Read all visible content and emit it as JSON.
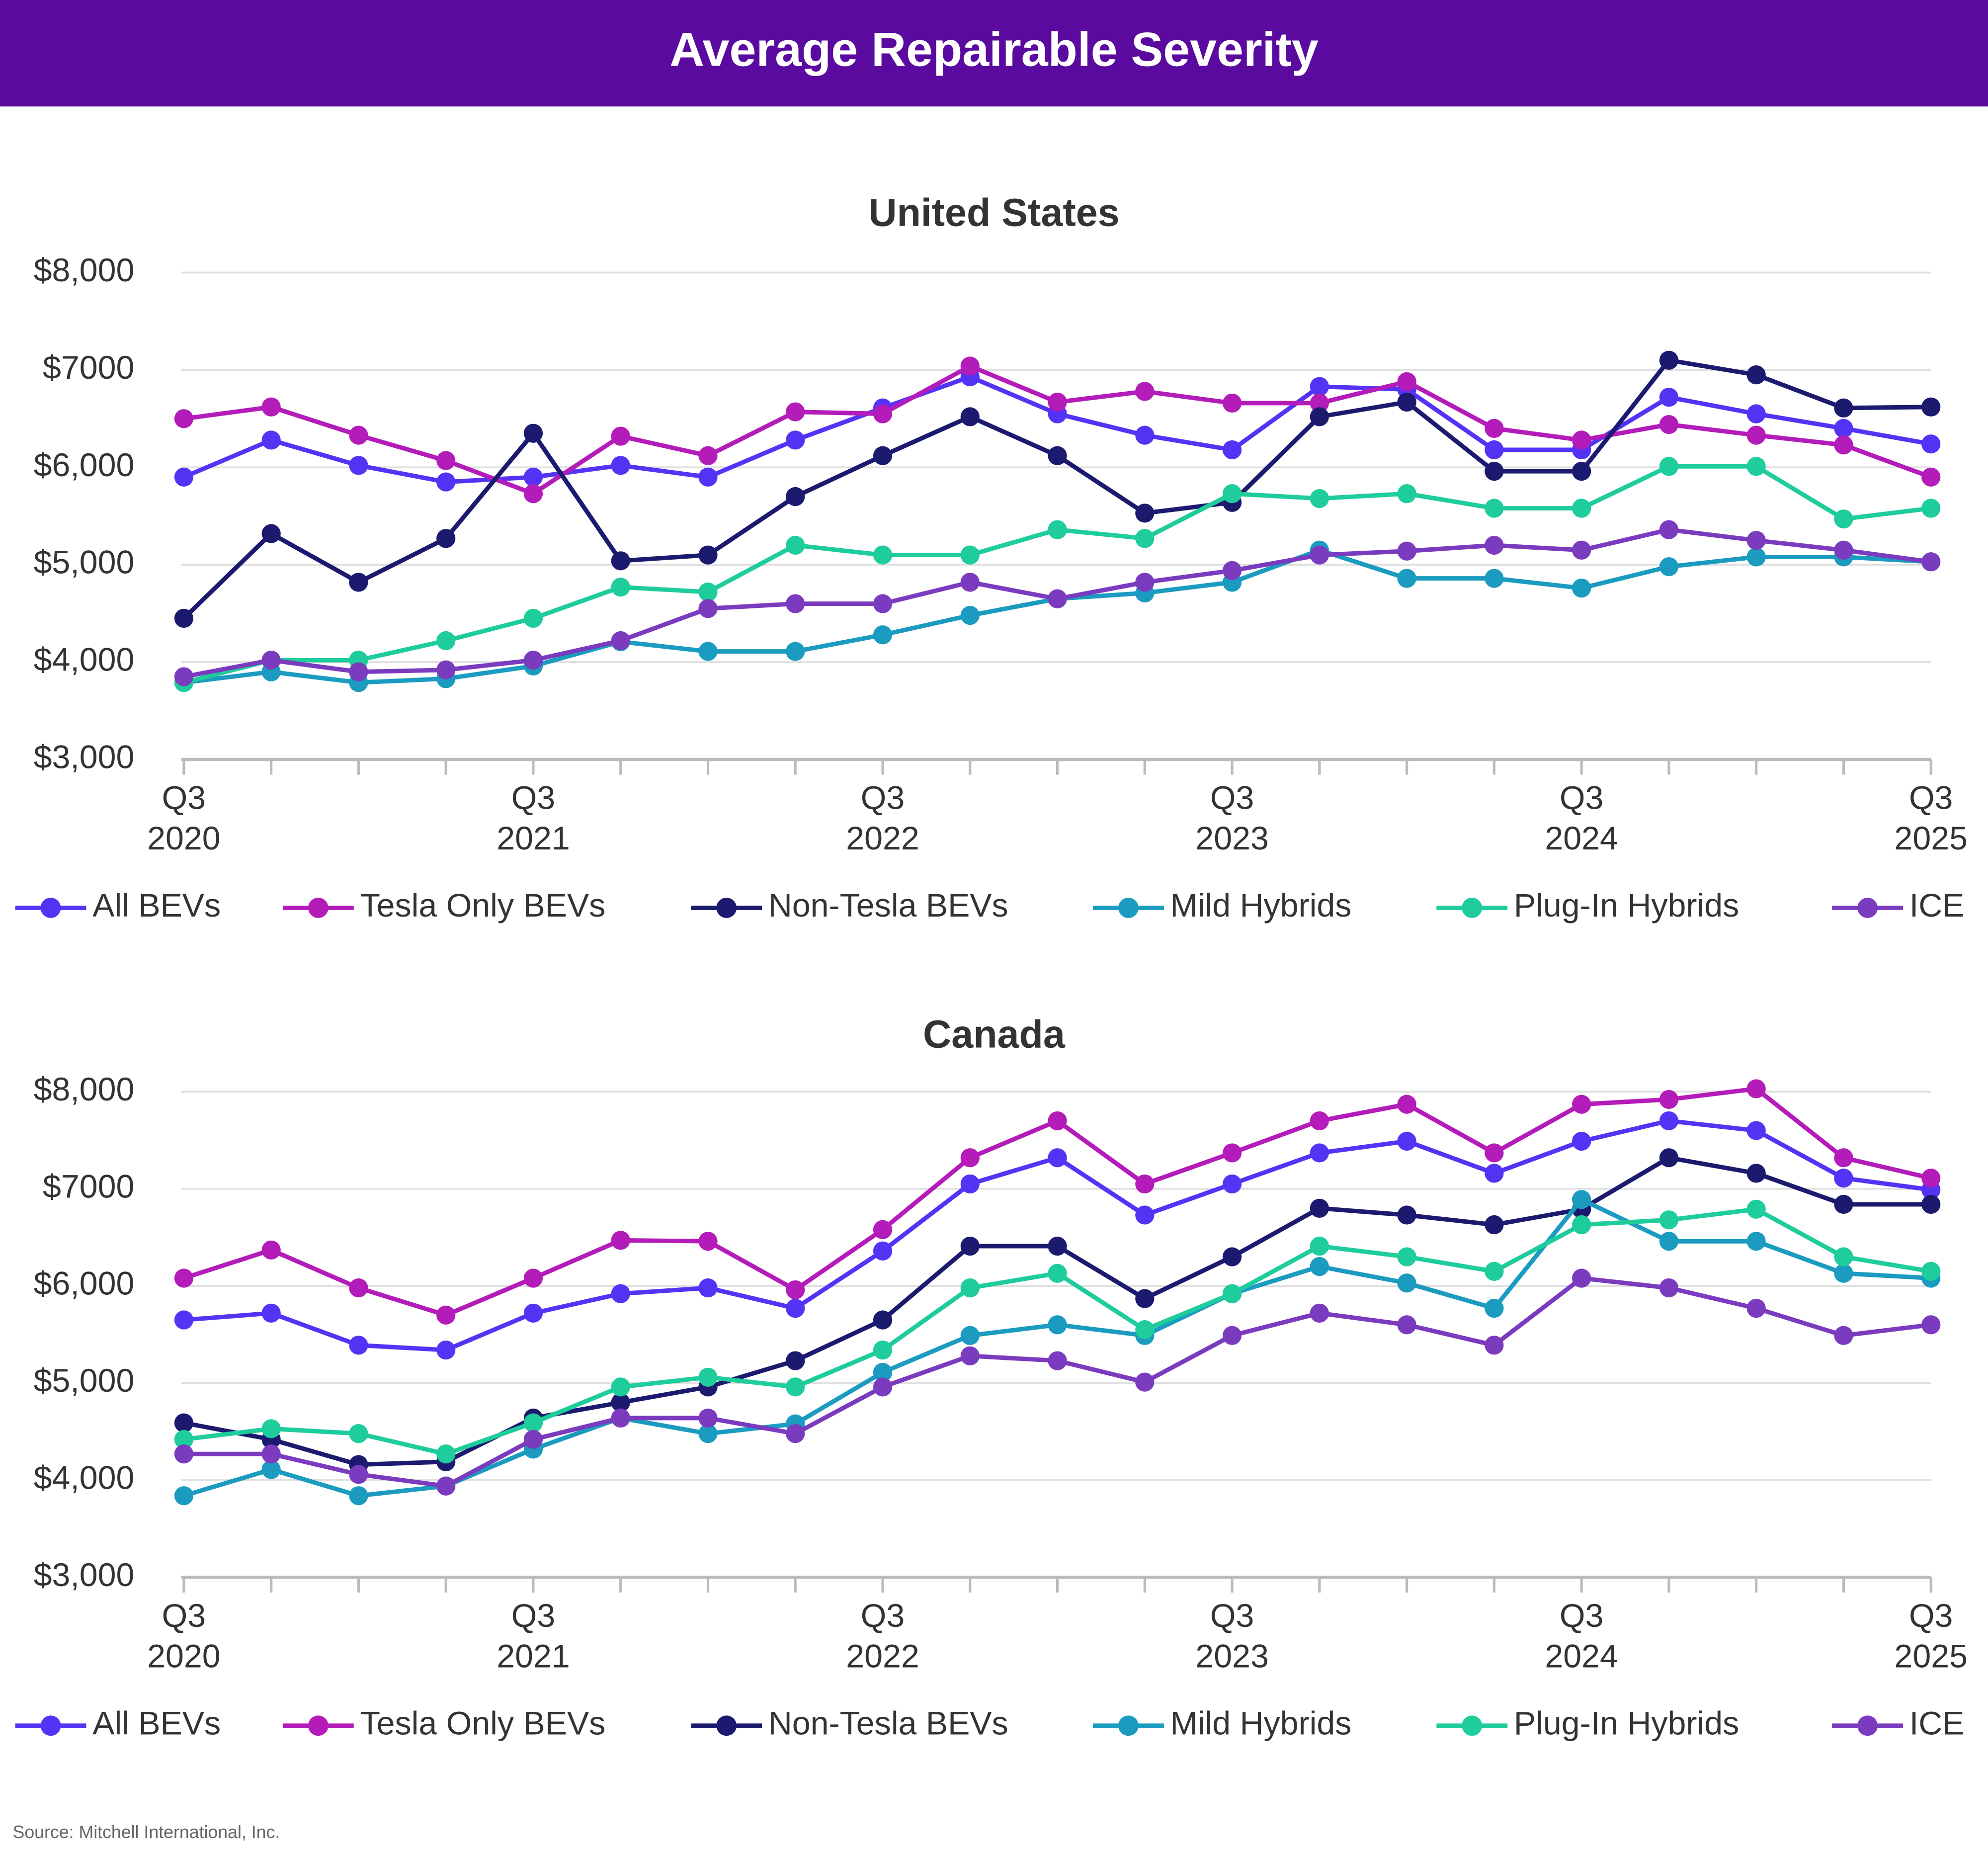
{
  "title": "Average Repairable Severity",
  "source": "Source: Mitchell International, Inc.",
  "chart_data": [
    {
      "type": "line",
      "title": "United States",
      "categories": [
        "Q3 2020",
        null,
        null,
        null,
        "Q3 2021",
        null,
        null,
        null,
        "Q3 2022",
        null,
        null,
        null,
        "Q3 2023",
        null,
        null,
        null,
        "Q3 2024",
        null,
        null,
        null,
        "Q3 2025"
      ],
      "ylim": [
        3000,
        8000
      ],
      "yticks": [
        {
          "value": 3000,
          "label": "$3,000"
        },
        {
          "value": 4000,
          "label": "$4,000"
        },
        {
          "value": 5000,
          "label": "$5,000"
        },
        {
          "value": 6000,
          "label": "$6,000"
        },
        {
          "value": 7000,
          "label": "$7000"
        },
        {
          "value": 8000,
          "label": "$8,000"
        }
      ],
      "grid": true,
      "legend": "bottom",
      "series": [
        {
          "name": "All BEVs",
          "color": "#5533f5",
          "values": [
            5900,
            6280,
            6020,
            5850,
            5900,
            6020,
            5900,
            6280,
            6610,
            6930,
            6550,
            6330,
            6180,
            6830,
            6800,
            6180,
            6180,
            6720,
            6550,
            6400,
            6240
          ]
        },
        {
          "name": "Tesla Only BEVs",
          "color": "#b31cb8",
          "values": [
            6500,
            6620,
            6330,
            6070,
            5730,
            6320,
            6120,
            6570,
            6550,
            7040,
            6670,
            6780,
            6660,
            6660,
            6880,
            6400,
            6280,
            6440,
            6330,
            6230,
            5900
          ]
        },
        {
          "name": "Non-Tesla BEVs",
          "color": "#1b1a6e",
          "values": [
            4450,
            5320,
            4820,
            5270,
            6350,
            5040,
            5100,
            5700,
            6120,
            6520,
            6120,
            5530,
            5640,
            6520,
            6670,
            5960,
            5960,
            7100,
            6950,
            6610,
            6620
          ]
        },
        {
          "name": "Mild Hybrids",
          "color": "#1b9bbf",
          "values": [
            3790,
            3900,
            3790,
            3830,
            3960,
            4210,
            4110,
            4110,
            4280,
            4480,
            4650,
            4710,
            4820,
            5150,
            4860,
            4860,
            4760,
            4980,
            5080,
            5080,
            5030
          ]
        },
        {
          "name": "Plug-In Hybrids",
          "color": "#1ecc9c",
          "values": [
            3790,
            4020,
            4020,
            4220,
            4450,
            4770,
            4720,
            5200,
            5100,
            5100,
            5360,
            5270,
            5730,
            5680,
            5730,
            5580,
            5580,
            6010,
            6010,
            5470,
            5580
          ]
        },
        {
          "name": "ICE",
          "color": "#7b3bbf",
          "values": [
            3850,
            4020,
            3900,
            3920,
            4020,
            4220,
            4550,
            4600,
            4600,
            4820,
            4650,
            4820,
            4940,
            5100,
            5140,
            5200,
            5150,
            5360,
            5250,
            5150,
            5030
          ]
        }
      ]
    },
    {
      "type": "line",
      "title": "Canada",
      "categories": [
        "Q3 2020",
        null,
        null,
        null,
        "Q3 2021",
        null,
        null,
        null,
        "Q3 2022",
        null,
        null,
        null,
        "Q3 2023",
        null,
        null,
        null,
        "Q3 2024",
        null,
        null,
        null,
        "Q3 2025"
      ],
      "ylim": [
        3000,
        8000
      ],
      "yticks": [
        {
          "value": 3000,
          "label": "$3,000"
        },
        {
          "value": 4000,
          "label": "$4,000"
        },
        {
          "value": 5000,
          "label": "$5,000"
        },
        {
          "value": 6000,
          "label": "$6,000"
        },
        {
          "value": 7000,
          "label": "$7000"
        },
        {
          "value": 8000,
          "label": "$8,000"
        }
      ],
      "grid": true,
      "legend": "bottom",
      "series": [
        {
          "name": "All BEVs",
          "color": "#5533f5",
          "values": [
            5650,
            5720,
            5390,
            5340,
            5720,
            5920,
            5980,
            5770,
            6360,
            7050,
            7320,
            6730,
            7050,
            7370,
            7490,
            7160,
            7490,
            7700,
            7600,
            7110,
            6990
          ]
        },
        {
          "name": "Tesla Only BEVs",
          "color": "#b31cb8",
          "values": [
            6080,
            6370,
            5980,
            5700,
            6080,
            6470,
            6460,
            5960,
            6580,
            7320,
            7700,
            7050,
            7370,
            7700,
            7870,
            7370,
            7870,
            7920,
            8030,
            7320,
            7110
          ]
        },
        {
          "name": "Non-Tesla BEVs",
          "color": "#1b1a6e",
          "values": [
            4590,
            4420,
            4160,
            4190,
            4640,
            4800,
            4960,
            5230,
            5650,
            6410,
            6410,
            5870,
            6300,
            6800,
            6730,
            6630,
            6790,
            7320,
            7160,
            6840,
            6840
          ]
        },
        {
          "name": "Mild Hybrids",
          "color": "#1b9bbf",
          "values": [
            3840,
            4110,
            3840,
            3940,
            4320,
            4640,
            4480,
            4580,
            5110,
            5490,
            5600,
            5490,
            5920,
            6200,
            6030,
            5770,
            6890,
            6460,
            6460,
            6130,
            6080
          ]
        },
        {
          "name": "Plug-In Hybrids",
          "color": "#1ecc9c",
          "values": [
            4420,
            4530,
            4480,
            4270,
            4590,
            4960,
            5060,
            4960,
            5340,
            5980,
            6130,
            5550,
            5920,
            6410,
            6300,
            6150,
            6630,
            6680,
            6790,
            6300,
            6150
          ]
        },
        {
          "name": "ICE",
          "color": "#7b3bbf",
          "values": [
            4270,
            4270,
            4060,
            3940,
            4420,
            4640,
            4640,
            4480,
            4960,
            5280,
            5230,
            5010,
            5490,
            5720,
            5600,
            5390,
            6080,
            5980,
            5770,
            5490,
            5600
          ]
        }
      ]
    }
  ]
}
